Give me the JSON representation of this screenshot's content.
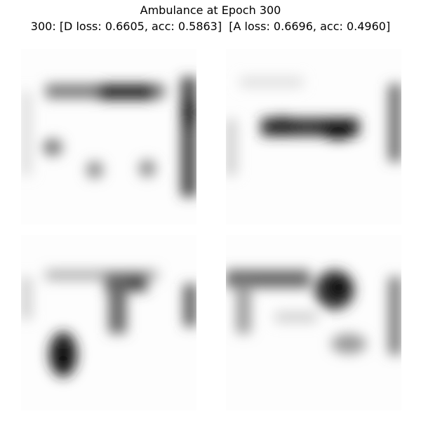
{
  "header": {
    "title": "Ambulance at Epoch 300",
    "subtitle": "300: [D loss: 0.6605, acc: 0.5863]  [A loss: 0.6696, acc: 0.4960]"
  }
}
